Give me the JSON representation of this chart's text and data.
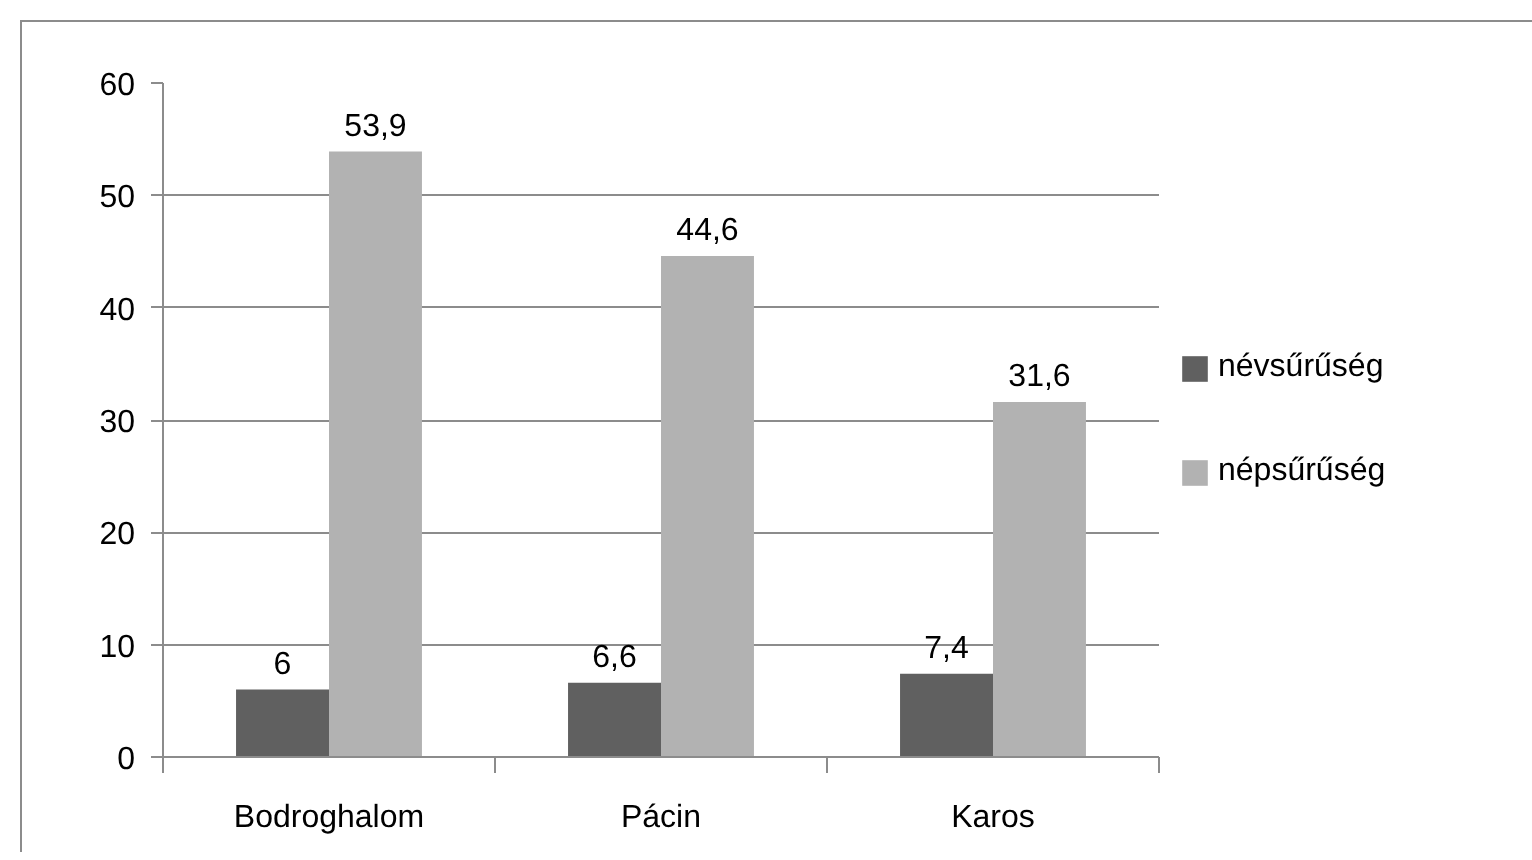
{
  "chart_data": {
    "type": "bar",
    "categories": [
      "Bodroghalom",
      "Pácin",
      "Karos"
    ],
    "series": [
      {
        "name": "névsűrűség",
        "color": "#606060",
        "values": [
          6,
          6.6,
          7.4
        ],
        "value_labels": [
          "6",
          "6,6",
          "7,4"
        ]
      },
      {
        "name": "népsűrűség",
        "color": "#b2b2b2",
        "values": [
          53.9,
          44.6,
          31.6
        ],
        "value_labels": [
          "53,9",
          "44,6",
          "31,6"
        ]
      }
    ],
    "ylim": [
      0,
      60
    ],
    "yticks": [
      0,
      10,
      20,
      30,
      40,
      50,
      60
    ],
    "grid": "y",
    "legend": "right"
  }
}
